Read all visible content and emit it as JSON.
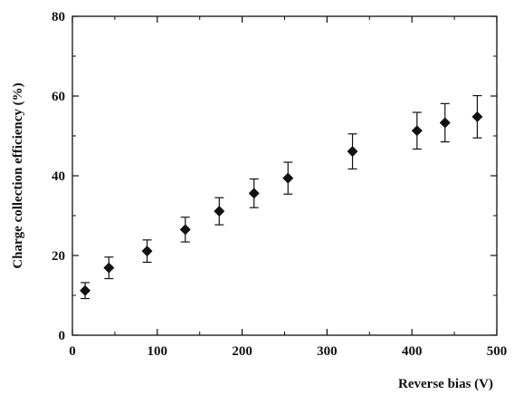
{
  "chart_data": {
    "type": "scatter",
    "title": "",
    "xlabel": "Reverse bias (V)",
    "ylabel": "Charge collection efficiency (%)",
    "xlim": [
      0,
      500
    ],
    "ylim": [
      0,
      80
    ],
    "x_ticks": [
      0,
      100,
      200,
      300,
      400,
      500
    ],
    "y_ticks": [
      0,
      20,
      40,
      60,
      80
    ],
    "grid": false,
    "marker": "diamond",
    "color": "#111111",
    "series": [
      {
        "points": [
          {
            "x": 15,
            "y": 11.2,
            "err": 2.0
          },
          {
            "x": 43,
            "y": 16.9,
            "err": 2.7
          },
          {
            "x": 88,
            "y": 21.1,
            "err": 2.8
          },
          {
            "x": 133,
            "y": 26.5,
            "err": 3.1
          },
          {
            "x": 173,
            "y": 31.1,
            "err": 3.4
          },
          {
            "x": 214,
            "y": 35.6,
            "err": 3.6
          },
          {
            "x": 254,
            "y": 39.4,
            "err": 4.0
          },
          {
            "x": 330,
            "y": 46.1,
            "err": 4.4
          },
          {
            "x": 406,
            "y": 51.3,
            "err": 4.6
          },
          {
            "x": 439,
            "y": 53.3,
            "err": 4.8
          },
          {
            "x": 477,
            "y": 54.8,
            "err": 5.3
          }
        ]
      }
    ]
  }
}
